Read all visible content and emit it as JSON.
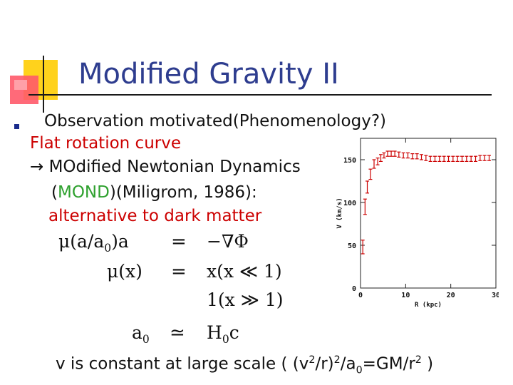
{
  "slide": {
    "title": "Modified Gravity II",
    "bullet_text": "Observation motivated(Phenomenology?)",
    "line_flat": "Flat rotation curve",
    "line_mond_prefix": "→ MOdified Newtonian Dynamics",
    "line_mond_open": "(",
    "line_mond_word": "MOND",
    "line_mond_rest": ")(Miligrom, 1986):",
    "line_alt": "alternative to dark matter",
    "bottom_text_pre": "v is constant at large scale ( (v",
    "bottom_sup1": "2",
    "bottom_mid1": "/r)",
    "bottom_sup2": "2",
    "bottom_mid2": "/a",
    "bottom_sub0": "0",
    "bottom_mid3": "=GM/r",
    "bottom_sup3": "2",
    "bottom_end": " )"
  },
  "equations": {
    "eq1_lhs": "μ(a/a",
    "eq1_lhs_sub": "0",
    "eq1_lhs_end": ")a",
    "eq1_op": "=",
    "eq1_rhs": "−∇Φ",
    "eq2_lhs": "μ(x)",
    "eq2_op": "=",
    "eq2_rhs": "x(x ≪ 1)",
    "eq3_rhs": "1(x ≫ 1)",
    "eq4_lhs": "a",
    "eq4_lhs_sub": "0",
    "eq4_op": "≃",
    "eq4_rhs": "H",
    "eq4_rhs_sub": "0",
    "eq4_rhs_end": "c"
  },
  "chart_data": {
    "type": "scatter",
    "xlabel": "R (kpc)",
    "ylabel": "V (km/s)",
    "xlim": [
      0,
      30
    ],
    "ylim": [
      0,
      175
    ],
    "x_ticks": [
      "0",
      "10",
      "20",
      "30"
    ],
    "y_ticks": [
      "0",
      "50",
      "100",
      "150"
    ],
    "marker_color": "#cc0000",
    "points": [
      {
        "x": 0.5,
        "y": 48,
        "err": 8
      },
      {
        "x": 1.0,
        "y": 95,
        "err": 9
      },
      {
        "x": 1.5,
        "y": 118,
        "err": 7
      },
      {
        "x": 2.2,
        "y": 133,
        "err": 6
      },
      {
        "x": 3.0,
        "y": 145,
        "err": 5
      },
      {
        "x": 3.8,
        "y": 148,
        "err": 4
      },
      {
        "x": 4.5,
        "y": 152,
        "err": 4
      },
      {
        "x": 5.2,
        "y": 155,
        "err": 3
      },
      {
        "x": 6.0,
        "y": 157,
        "err": 3
      },
      {
        "x": 6.8,
        "y": 157,
        "err": 3
      },
      {
        "x": 7.6,
        "y": 157,
        "err": 3
      },
      {
        "x": 8.5,
        "y": 156,
        "err": 3
      },
      {
        "x": 9.5,
        "y": 155,
        "err": 3
      },
      {
        "x": 10.5,
        "y": 155,
        "err": 3
      },
      {
        "x": 11.5,
        "y": 154,
        "err": 3
      },
      {
        "x": 12.5,
        "y": 154,
        "err": 3
      },
      {
        "x": 13.5,
        "y": 153,
        "err": 3
      },
      {
        "x": 14.5,
        "y": 152,
        "err": 3
      },
      {
        "x": 15.5,
        "y": 151,
        "err": 3
      },
      {
        "x": 16.5,
        "y": 151,
        "err": 3
      },
      {
        "x": 17.5,
        "y": 151,
        "err": 3
      },
      {
        "x": 18.5,
        "y": 151,
        "err": 3
      },
      {
        "x": 19.5,
        "y": 151,
        "err": 3
      },
      {
        "x": 20.5,
        "y": 151,
        "err": 3
      },
      {
        "x": 21.5,
        "y": 151,
        "err": 3
      },
      {
        "x": 22.5,
        "y": 151,
        "err": 3
      },
      {
        "x": 23.5,
        "y": 151,
        "err": 3
      },
      {
        "x": 24.5,
        "y": 151,
        "err": 3
      },
      {
        "x": 25.5,
        "y": 151,
        "err": 3
      },
      {
        "x": 26.5,
        "y": 152,
        "err": 3
      },
      {
        "x": 27.5,
        "y": 152,
        "err": 3
      },
      {
        "x": 28.5,
        "y": 152,
        "err": 3
      }
    ]
  }
}
